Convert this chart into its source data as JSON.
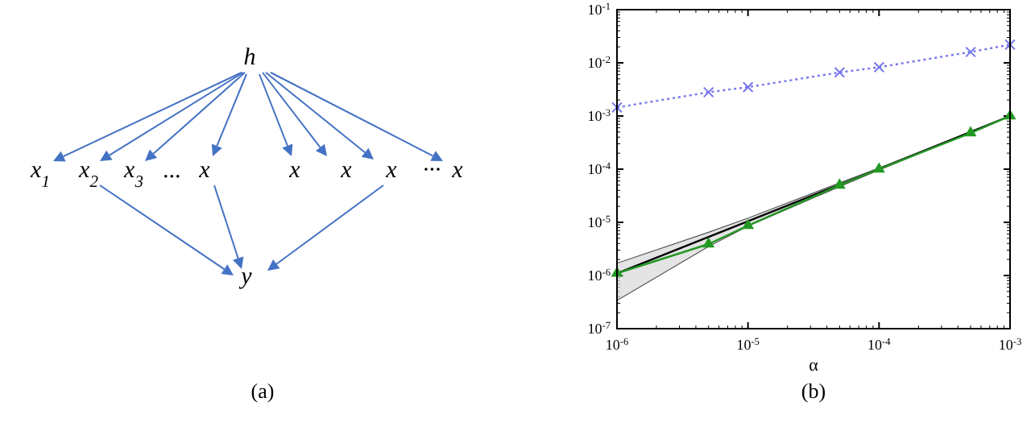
{
  "chart_data": [
    {
      "type": "other",
      "annotations": [
        "h",
        "x$_{1}$",
        "x$_{2}$",
        "x$_{3}$",
        "...",
        "x",
        "x",
        "x",
        "x",
        "···",
        "x",
        "y",
        "(a)"
      ]
    },
    {
      "type": "line",
      "xlabel": "α",
      "annotations": [
        "(b)"
      ],
      "log": "xy",
      "x": [
        1e-06,
        5e-06,
        1e-05,
        5e-05,
        0.0001,
        0.0005,
        0.001
      ],
      "xlim": [
        1e-06,
        0.001
      ],
      "ylim": [
        1e-07,
        0.1
      ],
      "xticks": [
        {
          "value": 1e-06,
          "label": "10$^{-6}$"
        },
        {
          "value": 1e-05,
          "label": "10$^{-5}$"
        },
        {
          "value": 0.0001,
          "label": "10$^{-4}$"
        },
        {
          "value": 0.001,
          "label": "10$^{-3}$"
        }
      ],
      "yticks": [
        {
          "value": 1e-07,
          "label": "10$^{-7}$"
        },
        {
          "value": 1e-06,
          "label": "10$^{-6}$"
        },
        {
          "value": 1e-05,
          "label": "10$^{-5}$"
        },
        {
          "value": 0.0001,
          "label": "10$^{-4}$"
        },
        {
          "value": 0.001,
          "label": "10$^{-3}$"
        },
        {
          "value": 0.01,
          "label": "10$^{-2}$"
        },
        {
          "value": 0.1,
          "label": "10$^{-1}$"
        }
      ],
      "series": [
        {
          "color": "#7777ee",
          "values": [
            0.00145,
            0.0028,
            0.0035,
            0.0066,
            0.0083,
            0.016,
            0.022
          ],
          "marker": "cross",
          "line_style": "dotted"
        },
        {
          "color": "#000000",
          "values": [
            1.1e-06,
            5.3e-06,
            1.05e-05,
            5.1e-05,
            0.0001,
            0.0005,
            0.001
          ],
          "lower": [
            3.4e-07,
            3.5e-06,
            8.5e-06,
            4.7e-05,
            9.7e-05,
            0.00049,
            0.001
          ],
          "upper": [
            1.7e-06,
            6.5e-06,
            1.2e-05,
            5.5e-05,
            0.000105,
            0.00051,
            0.001
          ],
          "marker": "none",
          "line_style": "solid"
        },
        {
          "color": "#229922",
          "values": [
            1.1e-06,
            3.9e-06,
            8.7e-06,
            5e-05,
            0.0001,
            0.00048,
            0.001
          ],
          "marker": "triangle",
          "line_style": "solid"
        }
      ]
    }
  ]
}
